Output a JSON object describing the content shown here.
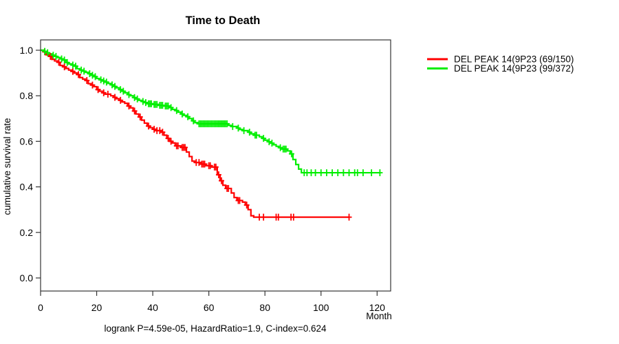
{
  "chart": {
    "title": "Time to Death",
    "ylabel": "cumulative survival rate",
    "xlabel": "Month",
    "annotation": "logrank P=4.59e-05, HazardRatio=1.9, C-index=0.624"
  },
  "chart_data": {
    "type": "line",
    "subtype": "kaplan-meier-step-function",
    "title": "Time to Death",
    "xlabel": "Month",
    "ylabel": "cumulative survival rate",
    "annotation": "logrank P=4.59e-05, HazardRatio=1.9, C-index=0.624",
    "xlim": [
      0,
      125
    ],
    "ylim": [
      0.0,
      1.0
    ],
    "x_ticks": [
      "0",
      "20",
      "40",
      "60",
      "80",
      "100",
      "120"
    ],
    "y_ticks": [
      "0.0",
      "0.2",
      "0.4",
      "0.6",
      "0.8",
      "1.0"
    ],
    "grid": false,
    "legend_position": "right-outside",
    "frame_color": "#333333",
    "series": [
      {
        "name": "DEL PEAK 14(9P23 (69/150)",
        "color": "#ff0000",
        "end_time": 110,
        "steps": [
          [
            0,
            1.0
          ],
          [
            1,
            0.993
          ],
          [
            2,
            0.98
          ],
          [
            3,
            0.973
          ],
          [
            4,
            0.96
          ],
          [
            5,
            0.953
          ],
          [
            6,
            0.947
          ],
          [
            7,
            0.933
          ],
          [
            8,
            0.927
          ],
          [
            9,
            0.92
          ],
          [
            10,
            0.913
          ],
          [
            11,
            0.907
          ],
          [
            12,
            0.9
          ],
          [
            13,
            0.893
          ],
          [
            14,
            0.88
          ],
          [
            15,
            0.873
          ],
          [
            16,
            0.867
          ],
          [
            17,
            0.853
          ],
          [
            18,
            0.847
          ],
          [
            19,
            0.84
          ],
          [
            20,
            0.827
          ],
          [
            21,
            0.82
          ],
          [
            22,
            0.813
          ],
          [
            23,
            0.807
          ],
          [
            25,
            0.8
          ],
          [
            26,
            0.793
          ],
          [
            27,
            0.787
          ],
          [
            28,
            0.78
          ],
          [
            29,
            0.773
          ],
          [
            30,
            0.767
          ],
          [
            31,
            0.755
          ],
          [
            32,
            0.747
          ],
          [
            33,
            0.733
          ],
          [
            34,
            0.72
          ],
          [
            35,
            0.707
          ],
          [
            36,
            0.693
          ],
          [
            37,
            0.68
          ],
          [
            38,
            0.667
          ],
          [
            39,
            0.66
          ],
          [
            40,
            0.653
          ],
          [
            41,
            0.647
          ],
          [
            43,
            0.64
          ],
          [
            44,
            0.627
          ],
          [
            45,
            0.613
          ],
          [
            46,
            0.6
          ],
          [
            47,
            0.593
          ],
          [
            48,
            0.58
          ],
          [
            50,
            0.573
          ],
          [
            52,
            0.553
          ],
          [
            53,
            0.533
          ],
          [
            54,
            0.513
          ],
          [
            55,
            0.507
          ],
          [
            57,
            0.5
          ],
          [
            59,
            0.493
          ],
          [
            61,
            0.487
          ],
          [
            63,
            0.453
          ],
          [
            64,
            0.427
          ],
          [
            65,
            0.407
          ],
          [
            66,
            0.393
          ],
          [
            68,
            0.373
          ],
          [
            69,
            0.353
          ],
          [
            70,
            0.34
          ],
          [
            72,
            0.333
          ],
          [
            73,
            0.32
          ],
          [
            74,
            0.3
          ],
          [
            75,
            0.273
          ],
          [
            76,
            0.267
          ]
        ],
        "censor_times": [
          1.5,
          3.5,
          6.5,
          8.5,
          11.5,
          13.5,
          16.5,
          18.5,
          20.5,
          22.5,
          24,
          26.5,
          28.5,
          31.5,
          33.5,
          35.5,
          38.5,
          40.5,
          41.5,
          42.5,
          43.5,
          45.5,
          46.5,
          48.5,
          49,
          50.5,
          51,
          51.5,
          55.5,
          56.5,
          57.5,
          58,
          58.5,
          60,
          60.5,
          62,
          62.5,
          63.5,
          64.5,
          66.5,
          67,
          70.5,
          71,
          73.5,
          78,
          79.5,
          84,
          84.8,
          89.3,
          90.2,
          110
        ]
      },
      {
        "name": "DEL PEAK 14(9P23 (99/372)",
        "color": "#00ee00",
        "end_time": 121,
        "steps": [
          [
            0,
            1.0
          ],
          [
            1,
            0.995
          ],
          [
            2,
            0.989
          ],
          [
            3,
            0.984
          ],
          [
            4,
            0.978
          ],
          [
            5,
            0.973
          ],
          [
            6,
            0.968
          ],
          [
            7,
            0.962
          ],
          [
            8,
            0.957
          ],
          [
            9,
            0.946
          ],
          [
            10,
            0.94
          ],
          [
            11,
            0.935
          ],
          [
            12,
            0.93
          ],
          [
            13,
            0.919
          ],
          [
            14,
            0.913
          ],
          [
            15,
            0.908
          ],
          [
            16,
            0.903
          ],
          [
            17,
            0.897
          ],
          [
            18,
            0.89
          ],
          [
            19,
            0.884
          ],
          [
            20,
            0.876
          ],
          [
            21,
            0.87
          ],
          [
            22,
            0.865
          ],
          [
            23,
            0.86
          ],
          [
            24,
            0.854
          ],
          [
            25,
            0.848
          ],
          [
            26,
            0.841
          ],
          [
            27,
            0.835
          ],
          [
            28,
            0.827
          ],
          [
            29,
            0.82
          ],
          [
            30,
            0.813
          ],
          [
            31,
            0.805
          ],
          [
            32,
            0.8
          ],
          [
            33,
            0.792
          ],
          [
            34,
            0.786
          ],
          [
            35,
            0.78
          ],
          [
            36,
            0.775
          ],
          [
            37,
            0.77
          ],
          [
            38,
            0.765
          ],
          [
            40,
            0.762
          ],
          [
            42,
            0.758
          ],
          [
            44,
            0.755
          ],
          [
            46,
            0.748
          ],
          [
            47,
            0.74
          ],
          [
            48,
            0.735
          ],
          [
            49,
            0.728
          ],
          [
            50,
            0.72
          ],
          [
            51,
            0.714
          ],
          [
            52,
            0.708
          ],
          [
            53,
            0.7
          ],
          [
            54,
            0.69
          ],
          [
            55,
            0.682
          ],
          [
            56,
            0.677
          ],
          [
            67,
            0.67
          ],
          [
            68,
            0.665
          ],
          [
            70,
            0.658
          ],
          [
            71,
            0.652
          ],
          [
            72,
            0.647
          ],
          [
            74,
            0.64
          ],
          [
            75,
            0.633
          ],
          [
            76,
            0.627
          ],
          [
            78,
            0.62
          ],
          [
            79,
            0.613
          ],
          [
            80,
            0.605
          ],
          [
            81,
            0.598
          ],
          [
            82,
            0.592
          ],
          [
            83,
            0.585
          ],
          [
            84,
            0.578
          ],
          [
            85,
            0.572
          ],
          [
            86,
            0.566
          ],
          [
            88,
            0.558
          ],
          [
            89,
            0.545
          ],
          [
            90,
            0.52
          ],
          [
            91,
            0.498
          ],
          [
            92,
            0.478
          ],
          [
            93,
            0.462
          ]
        ],
        "censor_times": [
          1.5,
          2.5,
          4.5,
          5.5,
          7.5,
          8.5,
          9.5,
          11.5,
          12.5,
          14.5,
          15.5,
          17.5,
          18.5,
          19.5,
          21.5,
          22.5,
          23.5,
          25.5,
          26.5,
          28.5,
          29.5,
          31.5,
          33.5,
          34.5,
          36.5,
          37.5,
          38.5,
          39,
          39.5,
          40.5,
          41,
          41.5,
          42.5,
          43,
          43.5,
          44.5,
          45,
          45.5,
          46.5,
          48.5,
          50.5,
          52.5,
          54.5,
          56.5,
          57,
          57.5,
          58,
          58.5,
          59,
          59.5,
          60,
          60.5,
          61,
          61.5,
          62,
          62.5,
          63,
          63.5,
          64,
          64.5,
          65,
          65.5,
          66,
          66.5,
          68.5,
          70.5,
          72.5,
          74.5,
          76.5,
          77,
          79.5,
          81.5,
          82.5,
          85.5,
          86.5,
          87,
          87.5,
          89.5,
          94,
          95,
          96.5,
          98,
          100,
          102,
          104,
          106,
          108,
          110,
          112,
          113,
          115,
          118,
          121
        ]
      }
    ]
  }
}
